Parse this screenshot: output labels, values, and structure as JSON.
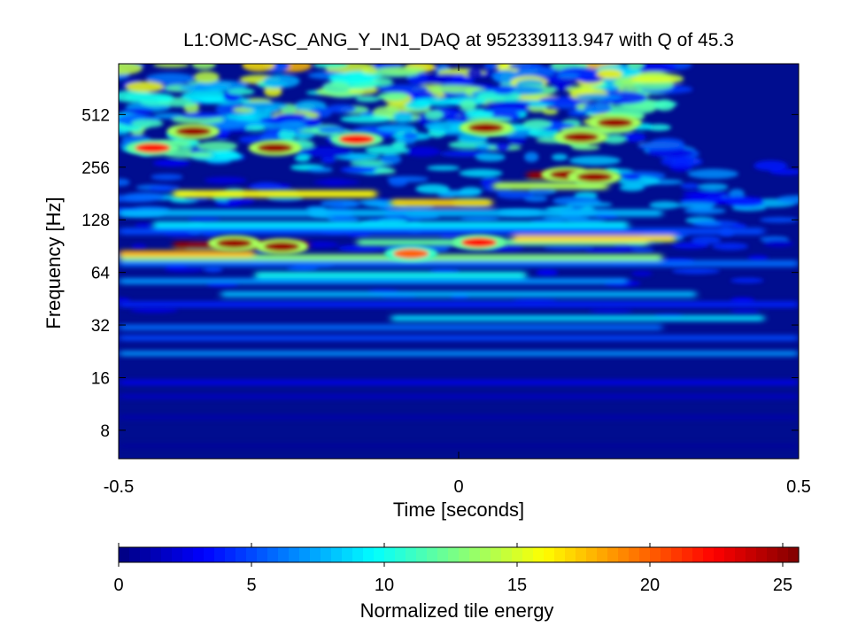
{
  "chart_data": {
    "type": "heatmap",
    "title": "L1:OMC-ASC_ANG_Y_IN1_DAQ at 952339113.947 with Q of 45.3",
    "xlabel": "Time [seconds]",
    "ylabel": "Frequency [Hz]",
    "xlim": [
      -0.5,
      0.5
    ],
    "ylim": [
      5.5,
      1000
    ],
    "yscale": "log2",
    "x_ticks": [
      -0.5,
      0,
      0.5
    ],
    "x_tick_labels": [
      "-0.5",
      "0",
      "0.5"
    ],
    "y_ticks": [
      8,
      16,
      32,
      64,
      128,
      256,
      512
    ],
    "y_tick_labels": [
      "8",
      "16",
      "32",
      "64",
      "128",
      "256",
      "512"
    ],
    "colorbar": {
      "label": "Normalized tile energy",
      "colormap": "jet",
      "range": [
        0,
        25.6
      ],
      "ticks": [
        0,
        5,
        10,
        15,
        20,
        25
      ],
      "tick_labels": [
        "0",
        "5",
        "10",
        "15",
        "20",
        "25"
      ]
    },
    "bands": [
      {
        "freq": 6.5,
        "t0": -0.5,
        "t1": 0.5,
        "energy": 0.8
      },
      {
        "freq": 9.5,
        "t0": -0.5,
        "t1": 0.5,
        "energy": 1.2
      },
      {
        "freq": 12.5,
        "t0": -0.5,
        "t1": 0.5,
        "energy": 1.8
      },
      {
        "freq": 15,
        "t0": -0.5,
        "t1": 0.5,
        "energy": 2.8
      },
      {
        "freq": 22,
        "t0": -0.5,
        "t1": 0.5,
        "energy": 7
      },
      {
        "freq": 27,
        "t0": -0.5,
        "t1": 0.5,
        "energy": 5
      },
      {
        "freq": 31,
        "t0": -0.5,
        "t1": 0.3,
        "energy": 6
      },
      {
        "freq": 35,
        "t0": -0.1,
        "t1": 0.45,
        "energy": 9
      },
      {
        "freq": 42,
        "t0": -0.5,
        "t1": 0.5,
        "energy": 4
      },
      {
        "freq": 48,
        "t0": -0.35,
        "t1": 0.35,
        "energy": 8
      },
      {
        "freq": 57,
        "t0": -0.5,
        "t1": 0.25,
        "energy": 7
      },
      {
        "freq": 62,
        "t0": -0.3,
        "t1": 0.1,
        "energy": 10
      },
      {
        "freq": 72,
        "t0": -0.5,
        "t1": 0.5,
        "energy": 6
      },
      {
        "freq": 78,
        "t0": -0.5,
        "t1": 0.3,
        "energy": 13
      },
      {
        "freq": 82,
        "t0": -0.5,
        "t1": -0.3,
        "energy": 18
      },
      {
        "freq": 92,
        "t0": -0.42,
        "t1": -0.22,
        "energy": 25
      },
      {
        "freq": 95,
        "t0": -0.15,
        "t1": 0.28,
        "energy": 12
      },
      {
        "freq": 100,
        "t0": 0.08,
        "t1": 0.32,
        "energy": 17
      },
      {
        "freq": 110,
        "t0": -0.5,
        "t1": 0.45,
        "energy": 5
      },
      {
        "freq": 120,
        "t0": -0.45,
        "t1": 0.25,
        "energy": 9
      },
      {
        "freq": 140,
        "t0": -0.5,
        "t1": 0.3,
        "energy": 8
      },
      {
        "freq": 160,
        "t0": -0.1,
        "t1": 0.05,
        "energy": 17
      },
      {
        "freq": 180,
        "t0": -0.42,
        "t1": -0.12,
        "energy": 16
      },
      {
        "freq": 200,
        "t0": 0.05,
        "t1": 0.22,
        "energy": 14
      },
      {
        "freq": 230,
        "t0": 0.1,
        "t1": 0.22,
        "energy": 25
      }
    ],
    "blobs": [
      {
        "t": -0.33,
        "freq": 94,
        "energy": 25
      },
      {
        "t": -0.26,
        "freq": 90,
        "energy": 25
      },
      {
        "t": -0.07,
        "freq": 82,
        "energy": 20
      },
      {
        "t": 0.03,
        "freq": 95,
        "energy": 22
      },
      {
        "t": 0.16,
        "freq": 232,
        "energy": 25
      },
      {
        "t": 0.2,
        "freq": 225,
        "energy": 25
      },
      {
        "t": -0.39,
        "freq": 410,
        "energy": 25
      },
      {
        "t": -0.27,
        "freq": 330,
        "energy": 25
      },
      {
        "t": -0.15,
        "freq": 370,
        "energy": 22
      },
      {
        "t": 0.04,
        "freq": 430,
        "energy": 25
      },
      {
        "t": 0.18,
        "freq": 380,
        "energy": 25
      },
      {
        "t": 0.23,
        "freq": 460,
        "energy": 25
      },
      {
        "t": -0.45,
        "freq": 330,
        "energy": 22
      }
    ]
  }
}
